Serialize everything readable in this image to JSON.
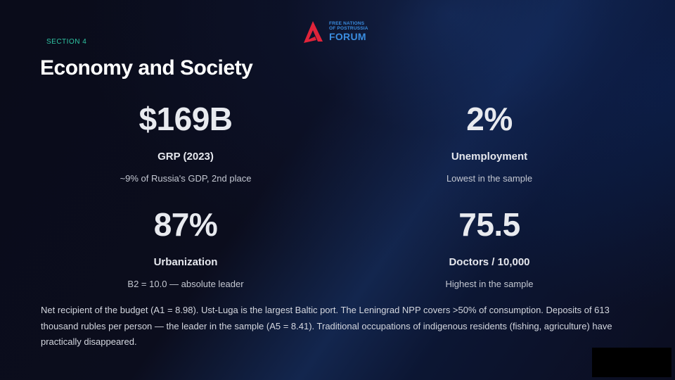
{
  "header": {
    "section": "SECTION 4",
    "title": "Economy and Society"
  },
  "logo": {
    "line1": "FREE NATIONS",
    "line2": "OF POSTRUSSIA",
    "name": "FORUM",
    "mark_icon": "forum-a-logo-icon",
    "mark_color": "#e0243a",
    "text_color": "#3a8de0"
  },
  "stats": {
    "grp": {
      "value": "$169B",
      "label": "GRP (2023)",
      "desc": "~9% of Russia's GDP, 2nd place"
    },
    "unemployment": {
      "value": "2%",
      "label": "Unemployment",
      "desc": "Lowest in the sample"
    },
    "urbanization": {
      "value": "87%",
      "label": "Urbanization",
      "desc": "B2 = 10.0 — absolute leader"
    },
    "doctors": {
      "value": "75.5",
      "label": "Doctors / 10,000",
      "desc": "Highest in the sample"
    }
  },
  "body": {
    "text": "Net recipient of the budget (A1 = 8.98). Ust-Luga is the largest Baltic port. The Leningrad NPP covers >50% of consumption. Deposits of 613 thousand rubles per person — the leader in the sample (A5 = 8.41). Traditional occupations of indigenous residents (fishing, agriculture) have practically disappeared."
  },
  "colors": {
    "accent": "#2fc7a5",
    "background": "#0a0c1a"
  }
}
